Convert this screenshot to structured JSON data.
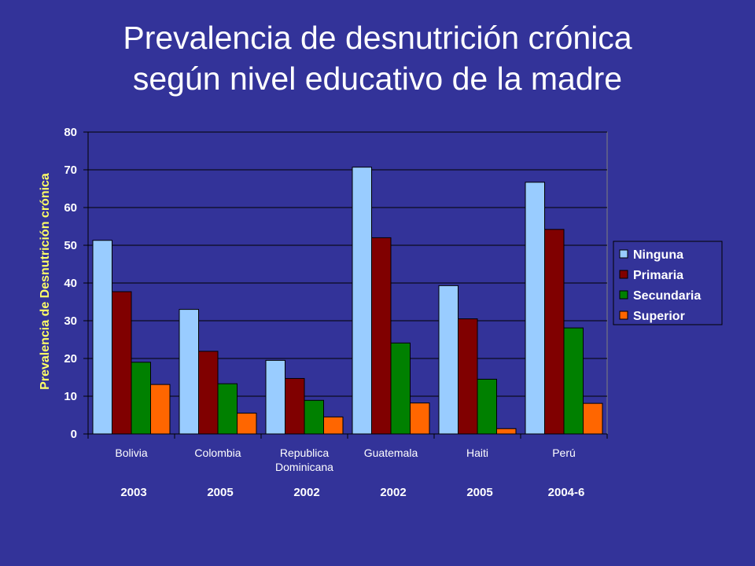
{
  "title": {
    "line1": "Prevalencia de desnutrición crónica",
    "line2": "según nivel educativo de la madre"
  },
  "chart_data": {
    "type": "bar",
    "ylabel": "Prevalencia de Desnutrición crónica",
    "ylim": [
      0,
      80
    ],
    "yticks": [
      0,
      10,
      20,
      30,
      40,
      50,
      60,
      70,
      80
    ],
    "categories": [
      [
        "Bolivia"
      ],
      [
        "Colombia"
      ],
      [
        "Republica",
        "Dominicana"
      ],
      [
        "Guatemala"
      ],
      [
        "Haiti"
      ],
      [
        "Perú"
      ]
    ],
    "years": [
      "2003",
      "2005",
      "2002",
      "2002",
      "2005",
      "2004-6"
    ],
    "series": [
      {
        "name": "Ninguna",
        "color": "#99ccff",
        "values": [
          51.3,
          33.0,
          19.5,
          70.7,
          39.3,
          66.7
        ]
      },
      {
        "name": "Primaria",
        "color": "#800000",
        "values": [
          37.7,
          21.9,
          14.7,
          52.0,
          30.5,
          54.2
        ]
      },
      {
        "name": "Secundaria",
        "color": "#008000",
        "values": [
          19.0,
          13.3,
          8.9,
          24.1,
          14.5,
          28.1
        ]
      },
      {
        "name": "Superior",
        "color": "#ff6600",
        "values": [
          13.1,
          5.5,
          4.5,
          8.2,
          1.4,
          8.1
        ]
      }
    ],
    "grid": true,
    "legend": "right"
  }
}
